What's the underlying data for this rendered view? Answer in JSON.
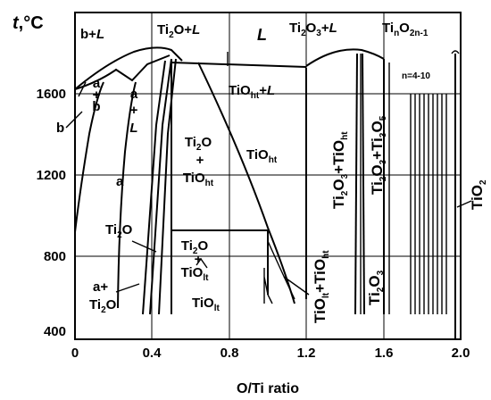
{
  "y_axis": {
    "label_prefix": "t",
    "label_unit": ",°C",
    "ticks": [
      "1600",
      "1200",
      "800",
      "400"
    ]
  },
  "x_axis": {
    "label": "O/Ti ratio",
    "ticks": [
      "0",
      "0.4",
      "0.8",
      "1.2",
      "1.6",
      "2.0"
    ]
  },
  "regions": {
    "b_plus_l": {
      "a": "b+",
      "b": "L"
    },
    "a_plus_b_stack": {
      "l1": "a",
      "l2": "+",
      "l3": "b"
    },
    "a_plus_l_stack": {
      "l1": "a",
      "l2": "+",
      "l3": "L"
    },
    "b": "b",
    "a": "a",
    "ti2o_plus_l": {
      "a": "Ti",
      "s": "2",
      "b": "O+",
      "c": "L"
    },
    "liquid": "L",
    "ti2o3_plus_l": {
      "a": "Ti",
      "s1": "2",
      "b": "O",
      "s2": "3",
      "c": "+",
      "d": "L"
    },
    "tino2n1": {
      "a": "Ti",
      "s1": "n",
      "b": "O",
      "s2": "2n-1"
    },
    "n_range": "n=4-10",
    "tioht_plus_l": {
      "a": "TiO",
      "s": "ht",
      "b": "+",
      "c": "L"
    },
    "ti2o_plus_tioht": {
      "l1a": "Ti",
      "l1s": "2",
      "l1b": "O",
      "l2": "+",
      "l3a": "TiO",
      "l3s": "ht"
    },
    "tioht": {
      "a": "TiO",
      "s": "ht"
    },
    "ti2o3_plus_tioht": {
      "a": "Ti",
      "s1": "2",
      "b": "O",
      "s2": "3",
      "c": "+TiO",
      "s3": "ht"
    },
    "ti2o3_plus_ti3o5": {
      "a": "Ti",
      "s1": "2",
      "b": "O",
      "s2": "3",
      "c": "+Ti",
      "s3": "3",
      "d": "O",
      "s4": "5"
    },
    "tio2": {
      "a": "TiO",
      "s": "2"
    },
    "ti2o": {
      "a": "Ti",
      "s": "2",
      "b": "O"
    },
    "ti2o_plus_tiolt": {
      "l1a": "Ti",
      "l1s": "2",
      "l1b": "O",
      "l2": "+",
      "l3a": "TiO",
      "l3s": "lt"
    },
    "tiolt": {
      "a": "TiO",
      "s": "lt"
    },
    "tiolt_plus_tioht": {
      "a": "TiO",
      "s1": "lt",
      "b": "+TiO",
      "s2": "ht"
    },
    "ti2o3_low": {
      "a": "Ti",
      "s1": "2",
      "b": "O",
      "s2": "3"
    },
    "a_plus_ti2o": {
      "l1": "a+",
      "l2a": "Ti",
      "l2s": "2",
      "l2b": "O"
    }
  }
}
